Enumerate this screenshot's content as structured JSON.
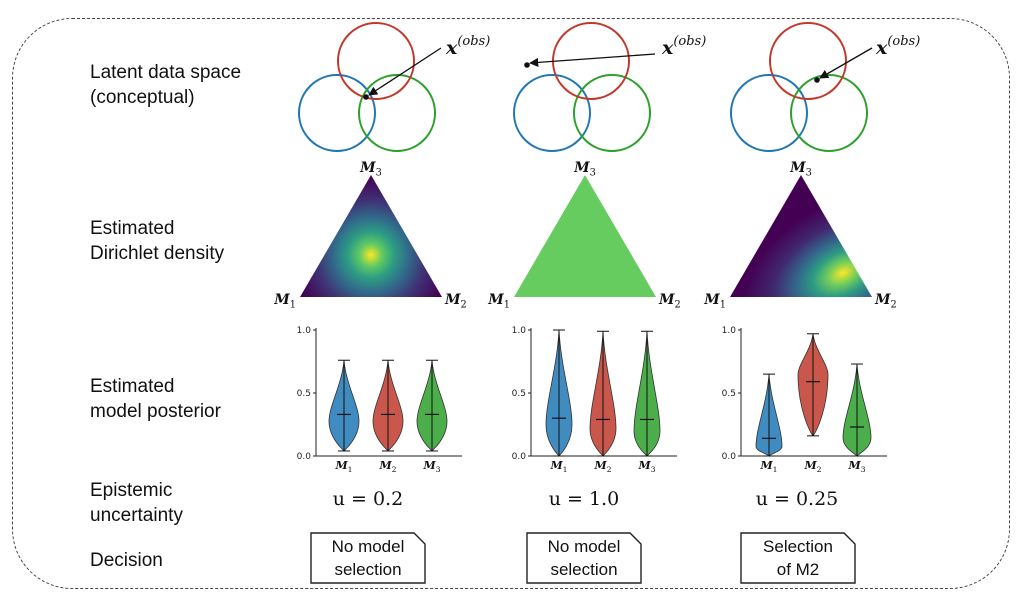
{
  "row_labels": {
    "latent_line1": "Latent data space",
    "latent_line2": "(conceptual)",
    "dirichlet_line1": "Estimated",
    "dirichlet_line2": "Dirichlet density",
    "posterior_line1": "Estimated",
    "posterior_line2": "model posterior",
    "uncertainty_line1": "Epistemic",
    "uncertainty_line2": "uncertainty",
    "decision": "Decision"
  },
  "obs_label": "x(obs)",
  "triangle_labels": {
    "m1": "M1",
    "m2": "M2",
    "m3": "M3"
  },
  "violin_axis": {
    "yticks": [
      "0.0",
      "0.5",
      "1.0"
    ],
    "ylim": [
      0,
      1
    ]
  },
  "model_labels": [
    "M1",
    "M2",
    "M3"
  ],
  "colors": {
    "m1": "#1f77b4",
    "m2": "#c0392b",
    "m3": "#2ca02c",
    "flat_density": "#66cc5f",
    "viridis_dark": "#440154",
    "viridis_bright": "#fde725"
  },
  "columns": [
    {
      "uncertainty": "u = 0.2",
      "decision_line1": "No model",
      "decision_line2": "selection",
      "density": "peak at center"
    },
    {
      "uncertainty": "u = 1.0",
      "decision_line1": "No model",
      "decision_line2": "selection",
      "density": "uniform"
    },
    {
      "uncertainty": "u = 0.25",
      "decision_line1": "Selection",
      "decision_line2": "of M2",
      "density": "peak near M2"
    }
  ],
  "chart_data": [
    {
      "type": "violin",
      "categories": [
        "M1",
        "M2",
        "M3"
      ],
      "series": [
        {
          "values": [
            {
              "min": 0.04,
              "median": 0.33,
              "max": 0.76
            },
            {
              "min": 0.04,
              "median": 0.33,
              "max": 0.76
            },
            {
              "min": 0.04,
              "median": 0.33,
              "max": 0.76
            }
          ]
        }
      ],
      "ylim": [
        0,
        1
      ]
    },
    {
      "type": "violin",
      "categories": [
        "M1",
        "M2",
        "M3"
      ],
      "series": [
        {
          "values": [
            {
              "min": 0.0,
              "median": 0.3,
              "max": 1.0
            },
            {
              "min": 0.0,
              "median": 0.29,
              "max": 0.99
            },
            {
              "min": 0.0,
              "median": 0.29,
              "max": 0.99
            }
          ]
        }
      ],
      "ylim": [
        0,
        1
      ]
    },
    {
      "type": "violin",
      "categories": [
        "M1",
        "M2",
        "M3"
      ],
      "series": [
        {
          "values": [
            {
              "min": 0.0,
              "median": 0.14,
              "max": 0.65
            },
            {
              "min": 0.16,
              "median": 0.59,
              "max": 0.97
            },
            {
              "min": 0.0,
              "median": 0.23,
              "max": 0.73
            }
          ]
        }
      ],
      "ylim": [
        0,
        1
      ]
    }
  ]
}
